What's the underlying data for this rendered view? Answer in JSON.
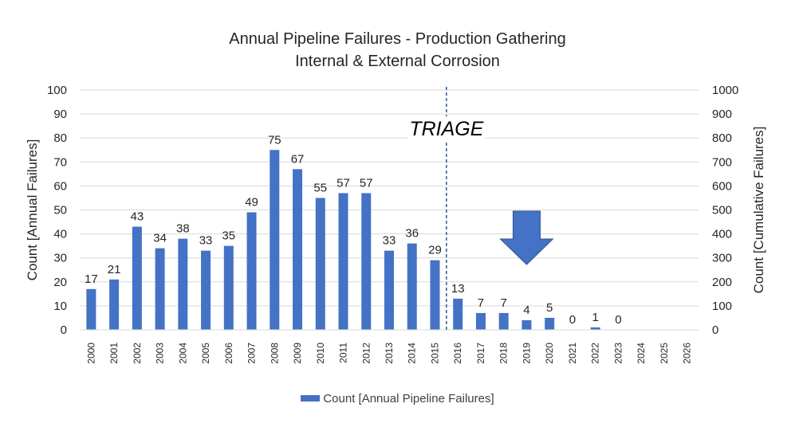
{
  "chart_data": {
    "type": "bar",
    "title": "Annual Pipeline Failures - Production Gathering",
    "subtitle": "Internal & External Corrosion",
    "ylabel": "Count [Annual Failures]",
    "y2label": "Count [Cumulative Failures]",
    "ylim": [
      0,
      100
    ],
    "y2lim": [
      0,
      1000
    ],
    "yticks": [
      "0",
      "10",
      "20",
      "30",
      "40",
      "50",
      "60",
      "70",
      "80",
      "90",
      "100"
    ],
    "y2ticks": [
      "0",
      "100",
      "200",
      "300",
      "400",
      "500",
      "600",
      "700",
      "800",
      "900",
      "1000"
    ],
    "categories": [
      "2000",
      "2001",
      "2002",
      "2003",
      "2004",
      "2005",
      "2006",
      "2007",
      "2008",
      "2009",
      "2010",
      "2011",
      "2012",
      "2013",
      "2014",
      "2015",
      "2016",
      "2017",
      "2018",
      "2019",
      "2020",
      "2021",
      "2022",
      "2023",
      "2024",
      "2025",
      "2026"
    ],
    "series": [
      {
        "name": "Count [Annual Pipeline Failures]",
        "color": "#4472C4",
        "values": [
          17,
          21,
          43,
          34,
          38,
          33,
          35,
          49,
          75,
          67,
          55,
          57,
          57,
          33,
          36,
          29,
          13,
          7,
          7,
          4,
          5,
          0,
          1,
          0,
          null,
          null,
          null
        ],
        "labels": [
          "17",
          "21",
          "43",
          "34",
          "38",
          "33",
          "35",
          "49",
          "75",
          "67",
          "55",
          "57",
          "57",
          "33",
          "36",
          "29",
          "13",
          "7",
          "7",
          "4",
          "5",
          "0",
          "1",
          "0",
          "",
          "",
          ""
        ]
      }
    ],
    "annotation": {
      "text": "TRIAGE",
      "position": "between 2015 and 2016"
    },
    "arrow": {
      "direction": "down",
      "color": "#4472C4",
      "position": "over 2019"
    },
    "grid": true,
    "legend_position": "bottom"
  }
}
